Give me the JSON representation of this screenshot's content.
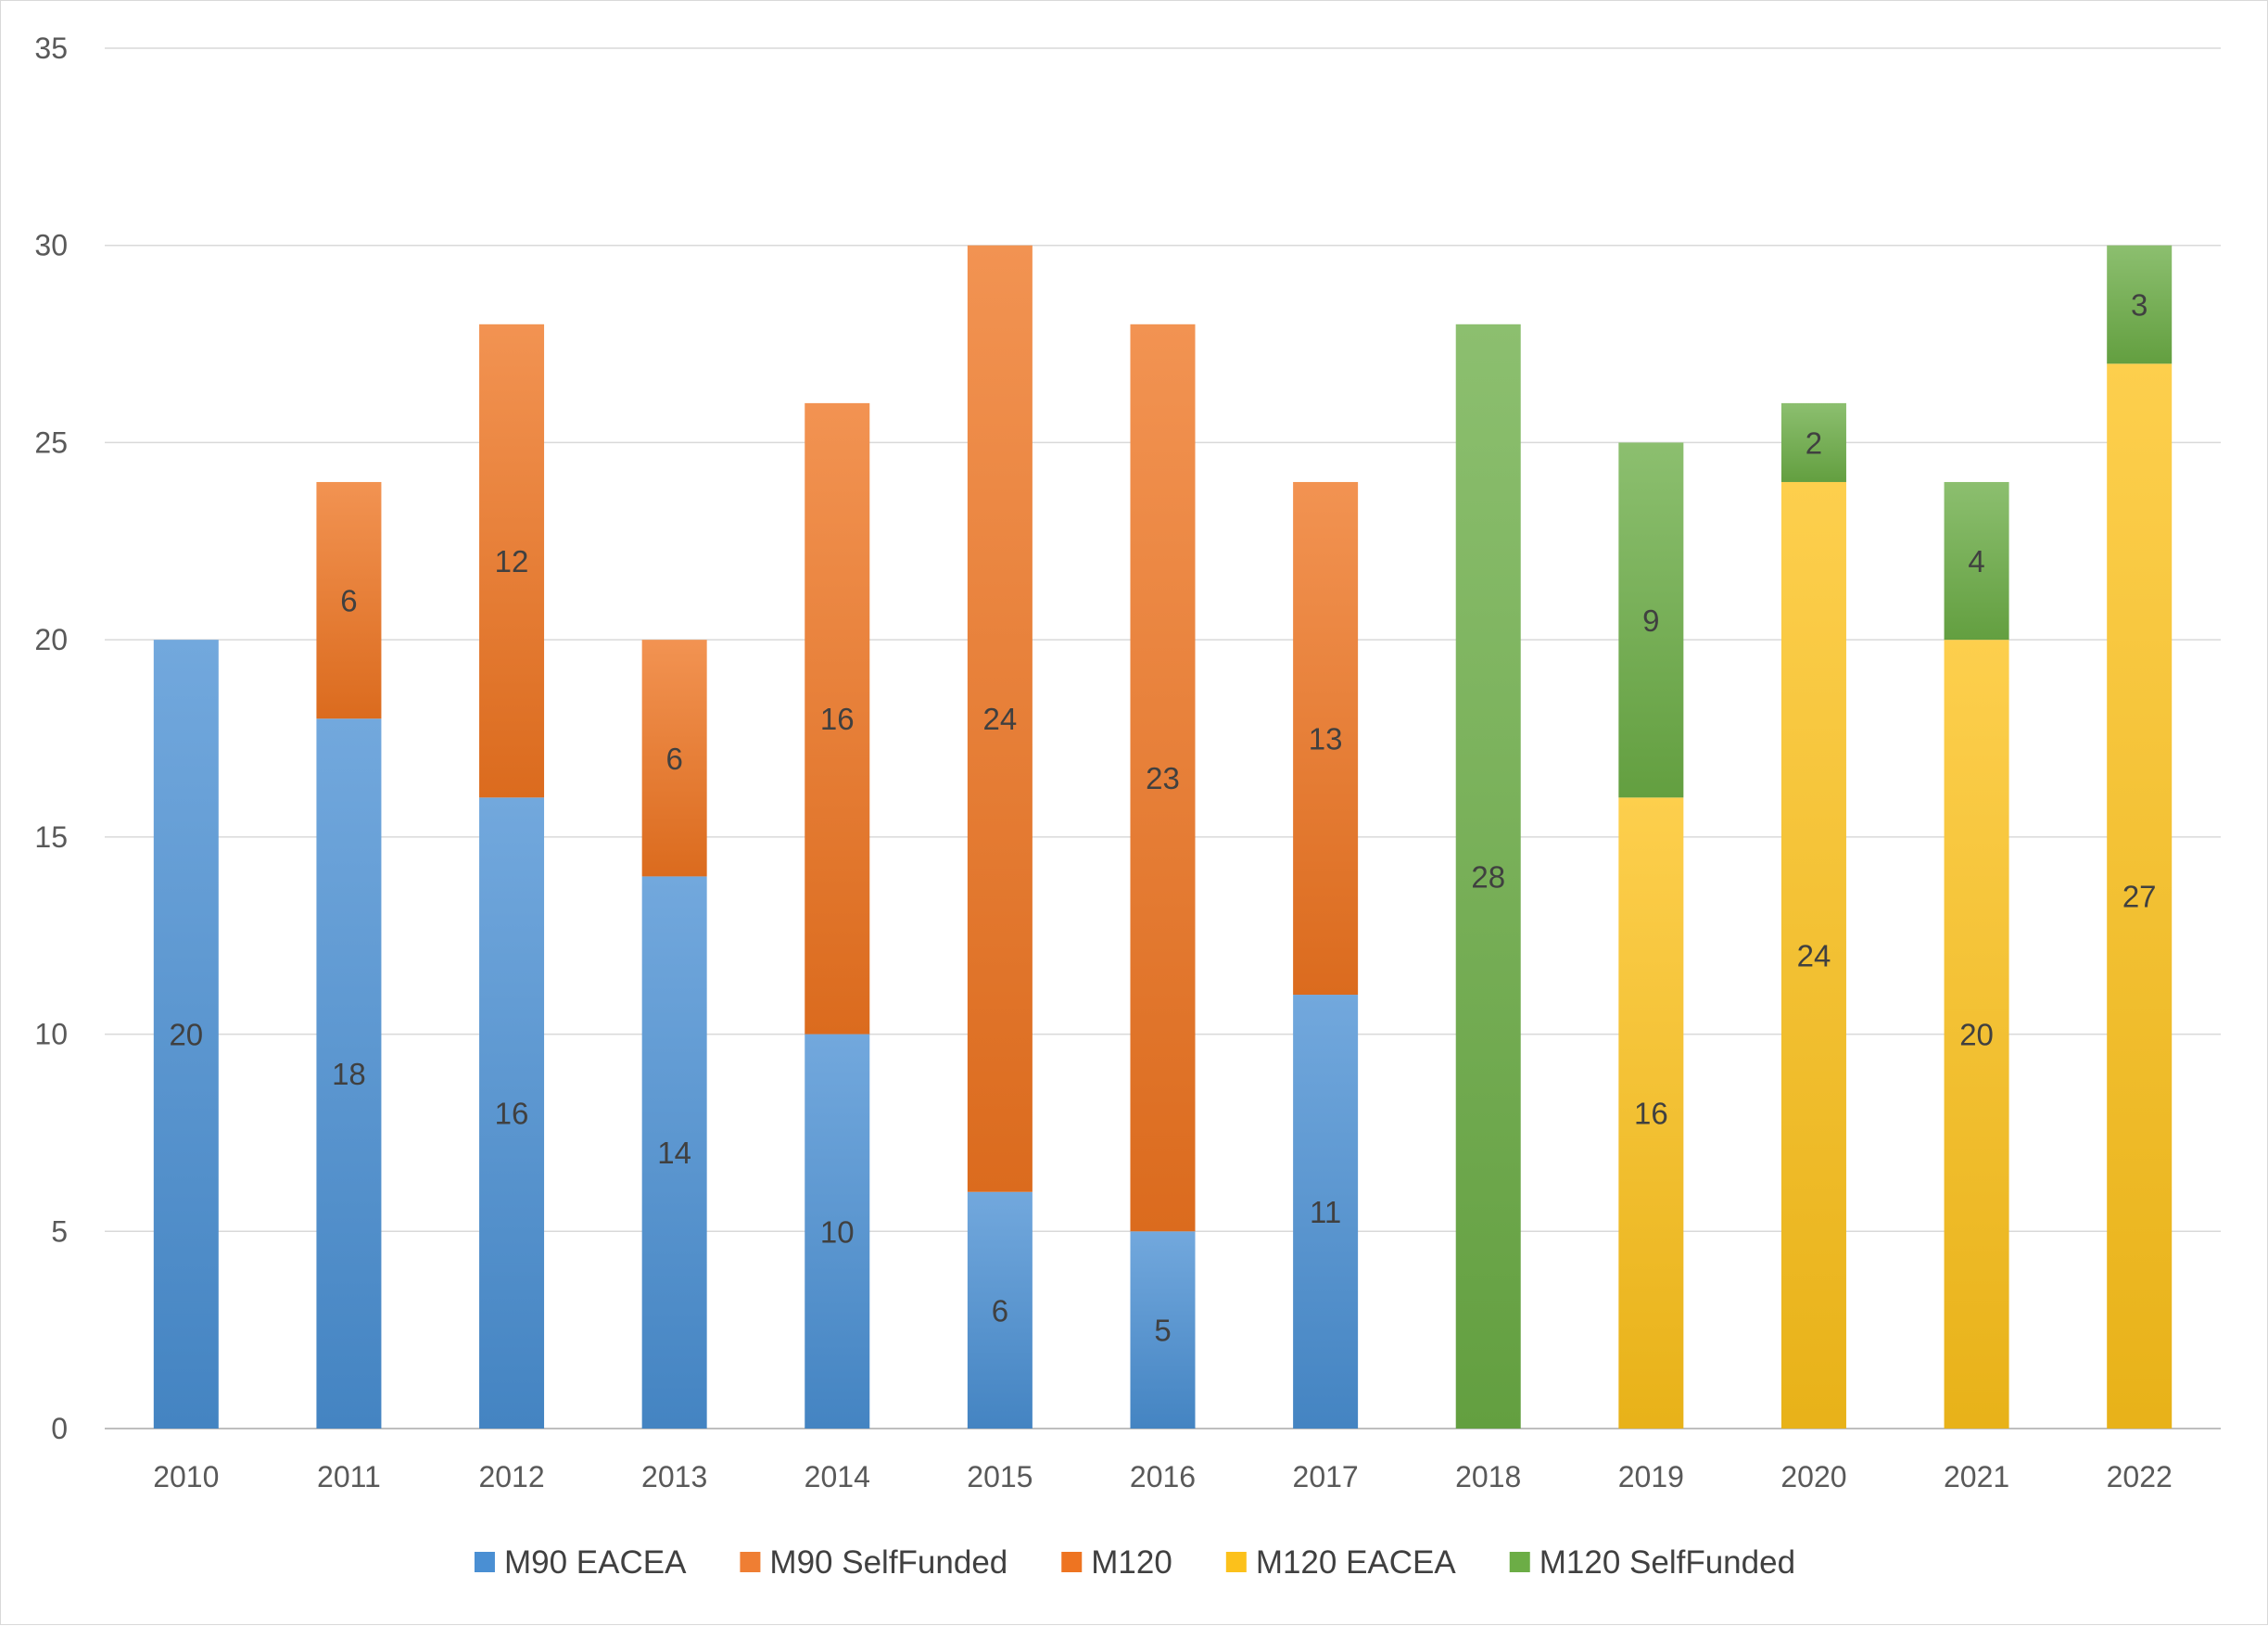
{
  "chart_data": {
    "type": "bar",
    "stacked": true,
    "categories": [
      "2010",
      "2011",
      "2012",
      "2013",
      "2014",
      "2015",
      "2016",
      "2017",
      "2018",
      "2019",
      "2020",
      "2021",
      "2022"
    ],
    "series": [
      {
        "name": "M90 EACEA",
        "color": "#4a8fd3",
        "values": [
          20,
          18,
          16,
          14,
          10,
          6,
          5,
          11,
          0,
          0,
          0,
          0,
          0
        ]
      },
      {
        "name": "M90 SelfFunded",
        "color": "#ef7e33",
        "values": [
          0,
          0,
          0,
          0,
          0,
          0,
          0,
          0,
          0,
          0,
          0,
          0,
          0
        ]
      },
      {
        "name": "M120",
        "color": "#ee7421",
        "values": [
          0,
          6,
          12,
          6,
          16,
          24,
          23,
          13,
          0,
          0,
          0,
          0,
          0
        ]
      },
      {
        "name": "M120 EACEA",
        "color": "#fcc11b",
        "values": [
          0,
          0,
          0,
          0,
          0,
          0,
          0,
          0,
          0,
          16,
          24,
          20,
          27
        ]
      },
      {
        "name": "M120 SelfFunded",
        "color": "#6cad46",
        "values": [
          0,
          0,
          0,
          0,
          0,
          0,
          0,
          0,
          28,
          9,
          2,
          4,
          3
        ]
      }
    ],
    "ylim": [
      0,
      35
    ],
    "yticks": [
      0,
      5,
      10,
      15,
      20,
      25,
      30,
      35
    ],
    "grid": true,
    "legend_position": "bottom",
    "data_labels": true
  }
}
